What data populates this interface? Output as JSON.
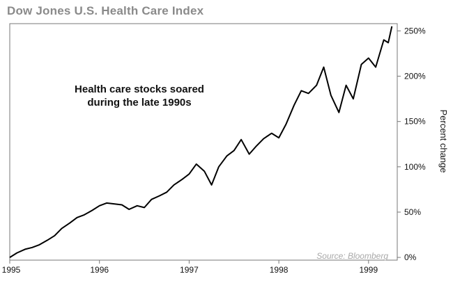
{
  "chart_data": {
    "type": "line",
    "title": "Dow Jones U.S. Health Care Index",
    "xlabel": "",
    "ylabel": "Percent change",
    "annotation": [
      "Health care stocks soared",
      "during the late 1990s"
    ],
    "source": "Source: Bloomberg",
    "x_ticks": [
      "1995",
      "1996",
      "1997",
      "1998",
      "1999"
    ],
    "y_ticks": [
      "0%",
      "50%",
      "100%",
      "150%",
      "200%",
      "250%"
    ],
    "xlim": [
      1995.0,
      1999.32
    ],
    "ylim": [
      -3,
      258
    ],
    "grid": false,
    "series": [
      {
        "color": "#000000",
        "x": [
          1995.0,
          1995.08,
          1995.17,
          1995.25,
          1995.33,
          1995.42,
          1995.5,
          1995.58,
          1995.67,
          1995.75,
          1995.83,
          1995.92,
          1996.0,
          1996.08,
          1996.17,
          1996.25,
          1996.33,
          1996.42,
          1996.5,
          1996.58,
          1996.67,
          1996.75,
          1996.83,
          1996.92,
          1997.0,
          1997.08,
          1997.17,
          1997.25,
          1997.33,
          1997.42,
          1997.5,
          1997.58,
          1997.67,
          1997.75,
          1997.83,
          1997.92,
          1998.0,
          1998.08,
          1998.17,
          1998.25,
          1998.33,
          1998.42,
          1998.5,
          1998.58,
          1998.67,
          1998.75,
          1998.83,
          1998.92,
          1999.0,
          1999.08,
          1999.17,
          1999.22,
          1999.26
        ],
        "values": [
          0,
          5,
          9,
          11,
          14,
          19,
          24,
          32,
          38,
          44,
          47,
          52,
          57,
          60,
          59,
          58,
          53,
          57,
          55,
          64,
          68,
          72,
          80,
          86,
          92,
          103,
          95,
          80,
          100,
          112,
          118,
          130,
          114,
          123,
          131,
          137,
          132,
          147,
          168,
          184,
          181,
          190,
          210,
          179,
          160,
          190,
          175,
          213,
          220,
          210,
          240,
          237,
          255
        ]
      }
    ]
  }
}
